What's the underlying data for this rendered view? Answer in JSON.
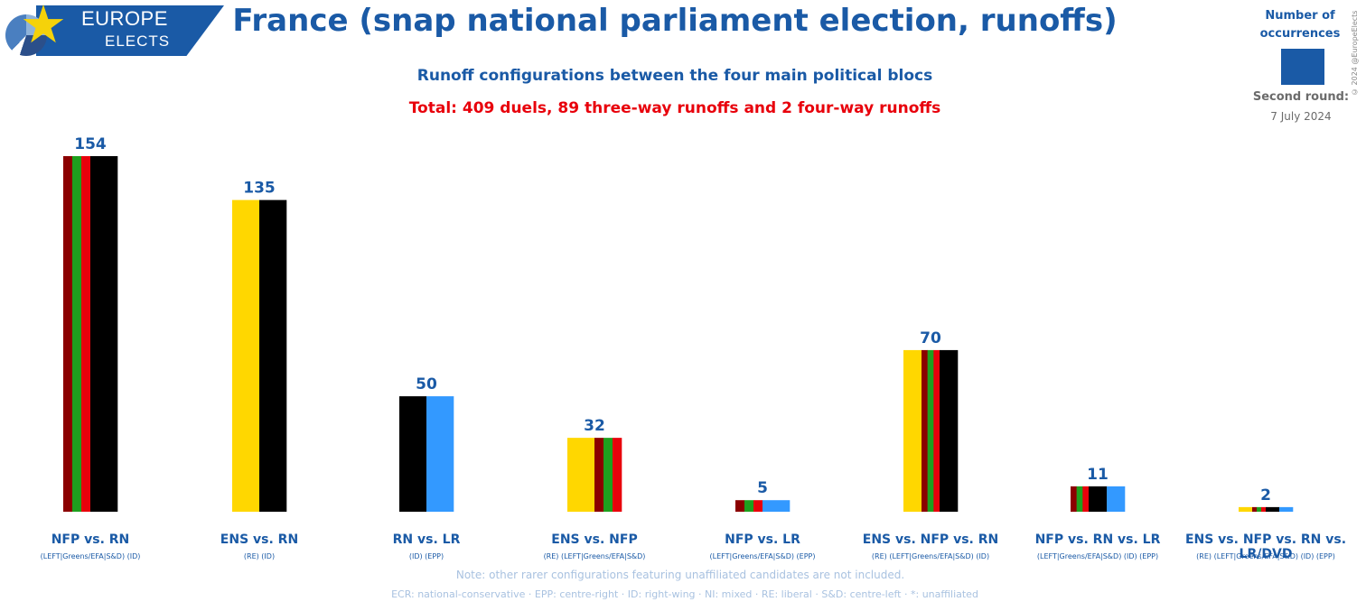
{
  "logo": {
    "line1": "EUROPE",
    "line2": "ELECTS"
  },
  "credit": "© 2024 @EuropeElects",
  "legend": {
    "title": "Number of occurrences",
    "swatch_color": "#1a5aa6",
    "date_line1": "Second round:",
    "date_line2": "7 July 2024"
  },
  "note": "Note: other rarer configurations featuring unaffiliated candidates are not included.",
  "abbreviations": "ECR: national-conservative · EPP: centre-right · ID: right-wing · NI: mixed · RE: liberal · S&D: centre-left · *: unaffiliated",
  "colors": {
    "ENS": "#ffd700",
    "NFP_dark_red": "#8b0000",
    "NFP_green": "#1ea01e",
    "NFP_red": "#e8000b",
    "RN": "#000000",
    "LR": "#3399ff"
  },
  "chart_data": {
    "type": "bar",
    "title": "France (snap national parliament election, runoffs)",
    "subtitle": "Runoff configurations between the four main political blocs",
    "total_text": "Total: 409 duels, 89 three-way runoffs and 2 four-way runoffs",
    "categories": [
      "NFP vs. RN",
      "ENS vs. RN",
      "RN vs. LR",
      "ENS vs. NFP",
      "NFP vs. LR",
      "ENS vs. NFP vs. RN",
      "NFP vs. RN vs. LR",
      "ENS vs. NFP vs. RN vs. LR/DVD"
    ],
    "category_subtitles": [
      "(LEFT|Greens/EFA|S&D) (ID)",
      "(RE) (ID)",
      "(ID) (EPP)",
      "(RE) (LEFT|Greens/EFA|S&D)",
      "(LEFT|Greens/EFA|S&D) (EPP)",
      "(RE) (LEFT|Greens/EFA|S&D) (ID)",
      "(LEFT|Greens/EFA|S&D) (ID) (EPP)",
      "(RE) (LEFT|Greens/EFA|S&D) (ID) (EPP)"
    ],
    "values": [
      154,
      135,
      50,
      32,
      5,
      70,
      11,
      2
    ],
    "bar_blocs": [
      [
        "NFP",
        "RN"
      ],
      [
        "ENS",
        "RN"
      ],
      [
        "RN",
        "LR"
      ],
      [
        "ENS",
        "NFP"
      ],
      [
        "NFP",
        "LR"
      ],
      [
        "ENS",
        "NFP",
        "RN"
      ],
      [
        "NFP",
        "RN",
        "LR"
      ],
      [
        "ENS",
        "NFP",
        "RN",
        "LR"
      ]
    ],
    "ylim": [
      0,
      154
    ],
    "grid": false,
    "legend": "top-right"
  }
}
